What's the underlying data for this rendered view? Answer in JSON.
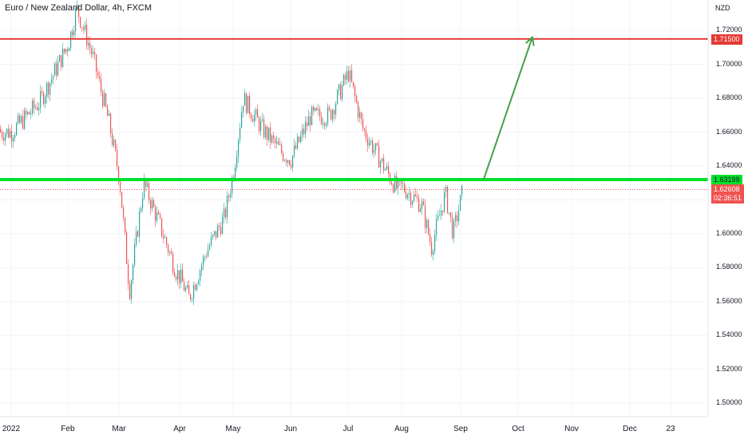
{
  "title": "Euro / New Zealand Dollar, 4h, FXCM",
  "currency": "NZD",
  "chart_data": {
    "type": "candlestick",
    "ylim": [
      1.492,
      1.738
    ],
    "y_ticks": [
      "1.72000",
      "1.70000",
      "1.68000",
      "1.66000",
      "1.64000",
      "1.62000",
      "1.60000",
      "1.58000",
      "1.56000",
      "1.54000",
      "1.52000",
      "1.50000"
    ],
    "x_ticks": [
      "2022",
      "Feb",
      "Mar",
      "Apr",
      "May",
      "Jun",
      "Jul",
      "Aug",
      "Sep",
      "Oct",
      "Nov",
      "Dec",
      "23"
    ],
    "price_path": [
      [
        "2022",
        1.66
      ],
      [
        "Jan-15",
        1.678
      ],
      [
        "Feb",
        1.712
      ],
      [
        "Feb-05",
        1.733
      ],
      [
        "Feb-14",
        1.706
      ],
      [
        "Feb-24",
        1.665
      ],
      [
        "Mar",
        1.633
      ],
      [
        "Mar-05",
        1.566
      ],
      [
        "Mar-12",
        1.63
      ],
      [
        "Mar-20",
        1.605
      ],
      [
        "Mar-28",
        1.578
      ],
      [
        "Apr",
        1.574
      ],
      [
        "Apr-05",
        1.562
      ],
      [
        "Apr-15",
        1.59
      ],
      [
        "Apr-25",
        1.61
      ],
      [
        "May",
        1.637
      ],
      [
        "May-05",
        1.68
      ],
      [
        "May-15",
        1.662
      ],
      [
        "May-25",
        1.648
      ],
      [
        "Jun",
        1.644
      ],
      [
        "Jun-10",
        1.669
      ],
      [
        "Jun-20",
        1.67
      ],
      [
        "Jul",
        1.695
      ],
      [
        "Jul-08",
        1.662
      ],
      [
        "Jul-18",
        1.643
      ],
      [
        "Jul-28",
        1.625
      ],
      [
        "Aug",
        1.628
      ],
      [
        "Aug-10",
        1.617
      ],
      [
        "Aug-15",
        1.592
      ],
      [
        "Aug-22",
        1.624
      ],
      [
        "Aug-26",
        1.6
      ],
      [
        "Aug-31",
        1.626
      ]
    ],
    "resistance": {
      "value": 1.715,
      "label": "1.71500",
      "color": "#e53935"
    },
    "support": {
      "value": 1.63199,
      "label": "1.63199",
      "color": "#00e02a"
    },
    "last_price": {
      "value": 1.62608,
      "label": "1.62608",
      "countdown": "02:36:51",
      "color": "#ef5350"
    },
    "projection": {
      "from": [
        "Sep-12",
        1.632
      ],
      "to": [
        "Oct-08",
        1.716
      ],
      "color": "#43a047"
    },
    "colors": {
      "up": "#26a69a",
      "down": "#ef5350",
      "grid": "#f0f3fa"
    }
  }
}
